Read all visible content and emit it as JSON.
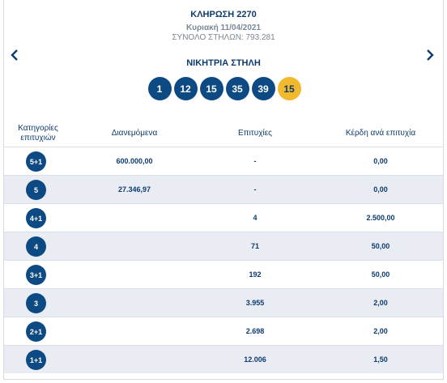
{
  "draw": {
    "title": "ΚΛΗΡΩΣΗ 2270",
    "date": "Κυριακή 11/04/2021",
    "columns": "ΣΥΝΟΛΟ ΣΤΗΛΩΝ: 793.281"
  },
  "winning": {
    "title": "ΝΙΚΗΤΡΙΑ ΣΤΗΛΗ",
    "numbers": [
      "1",
      "12",
      "15",
      "35",
      "39"
    ],
    "joker": "15"
  },
  "nav": {
    "prev_icon": "chevron-left-icon",
    "next_icon": "chevron-right-icon"
  },
  "table": {
    "headers": {
      "category_line1": "Κατηγορίες",
      "category_line2": "επιτυχιών",
      "distributed": "Διανεμόμενα",
      "winners": "Επιτυχίες",
      "prize": "Κέρδη ανά επιτυχία"
    },
    "rows": [
      {
        "category": "5+1",
        "distributed": "600.000,00",
        "winners": "-",
        "prize": "0,00"
      },
      {
        "category": "5",
        "distributed": "27.346,97",
        "winners": "-",
        "prize": "0,00"
      },
      {
        "category": "4+1",
        "distributed": "",
        "winners": "4",
        "prize": "2.500,00"
      },
      {
        "category": "4",
        "distributed": "",
        "winners": "71",
        "prize": "50,00"
      },
      {
        "category": "3+1",
        "distributed": "",
        "winners": "192",
        "prize": "50,00"
      },
      {
        "category": "3",
        "distributed": "",
        "winners": "3.955",
        "prize": "2,00"
      },
      {
        "category": "2+1",
        "distributed": "",
        "winners": "2.698",
        "prize": "2,00"
      },
      {
        "category": "1+1",
        "distributed": "",
        "winners": "12.006",
        "prize": "1,50"
      }
    ]
  },
  "colors": {
    "primary": "#0d4a84",
    "joker": "#f2b92c",
    "stripe": "#e9edf3"
  }
}
